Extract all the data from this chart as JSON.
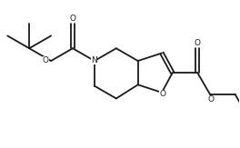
{
  "bg_color": "#ffffff",
  "line_color": "#1a1a1a",
  "line_width": 1.3,
  "figsize": [
    2.64,
    1.63
  ],
  "dpi": 100,
  "xlim": [
    0,
    10
  ],
  "ylim": [
    0,
    6.2
  ]
}
